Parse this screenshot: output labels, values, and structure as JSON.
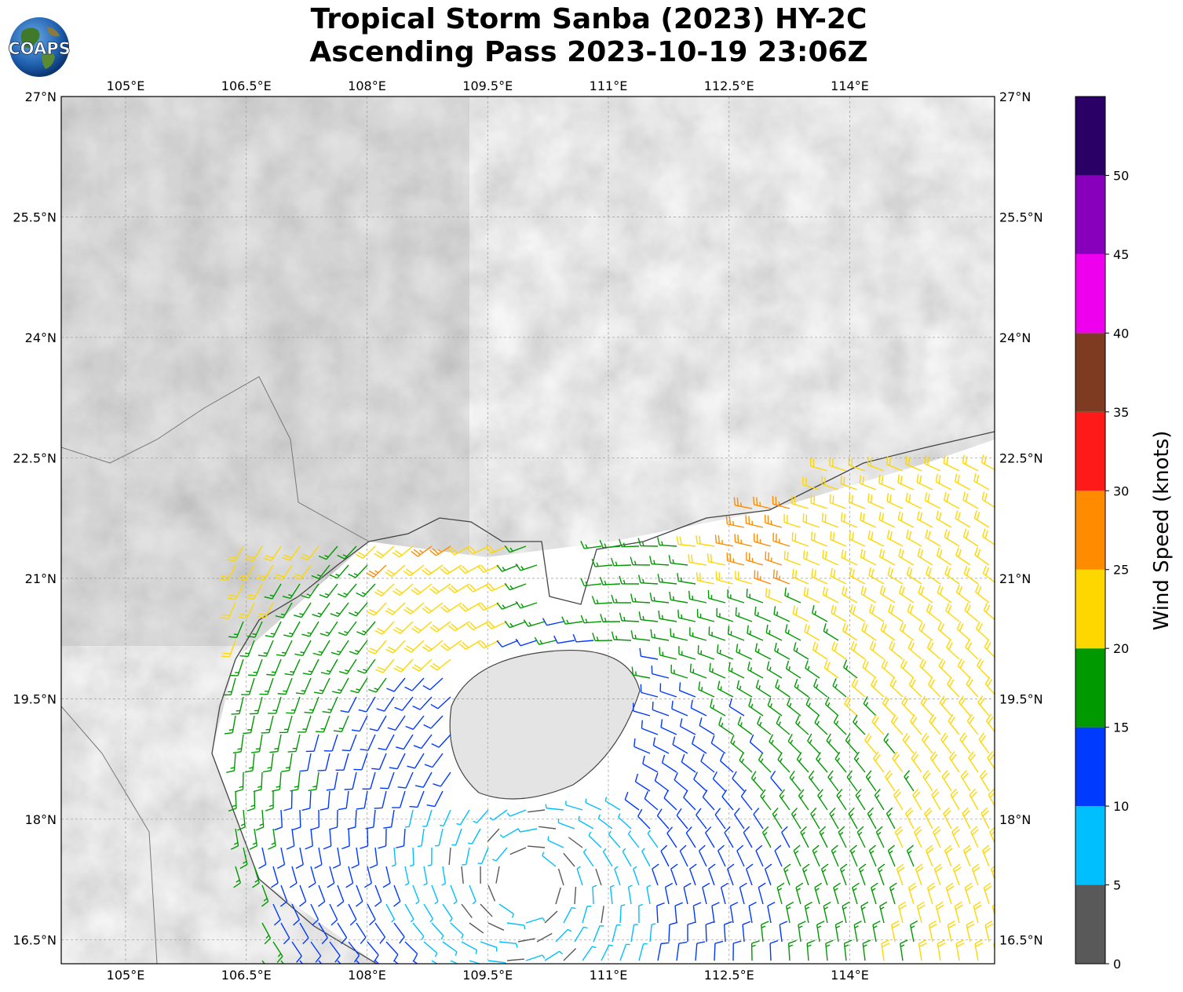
{
  "title": {
    "line1": "Tropical Storm Sanba (2023) HY-2C",
    "line2": "Ascending Pass 2023-10-19 23:06Z"
  },
  "logo": {
    "text": "COAPS",
    "icon": "globe-logo-icon"
  },
  "map": {
    "extent": {
      "lon_min": 104.2,
      "lon_max": 115.8,
      "lat_min": 16.2,
      "lat_max": 27.0
    },
    "lon_ticks": [
      "105°E",
      "106.5°E",
      "108°E",
      "109.5°E",
      "111°E",
      "112.5°E",
      "114°E"
    ],
    "lon_values": [
      105,
      106.5,
      108,
      109.5,
      111,
      112.5,
      114
    ],
    "lat_ticks": [
      "27°N",
      "25.5°N",
      "24°N",
      "22.5°N",
      "21°N",
      "19.5°N",
      "18°N",
      "16.5°N"
    ],
    "lat_values": [
      27,
      25.5,
      24,
      22.5,
      21,
      19.5,
      18,
      16.5
    ],
    "storm_center": {
      "lon": 110.0,
      "lat": 17.2
    },
    "background": "grayscale topography",
    "gridlines": true
  },
  "colorbar": {
    "label": "Wind Speed (knots)",
    "ticks": [
      "0",
      "5",
      "10",
      "15",
      "20",
      "25",
      "30",
      "35",
      "40",
      "45",
      "50"
    ],
    "bins": [
      {
        "min": 0,
        "max": 5,
        "color": "#595959"
      },
      {
        "min": 5,
        "max": 10,
        "color": "#00bfff"
      },
      {
        "min": 10,
        "max": 15,
        "color": "#0039ff"
      },
      {
        "min": 15,
        "max": 20,
        "color": "#009900"
      },
      {
        "min": 20,
        "max": 25,
        "color": "#ffd700"
      },
      {
        "min": 25,
        "max": 30,
        "color": "#ff8c00"
      },
      {
        "min": 30,
        "max": 35,
        "color": "#ff1a1a"
      },
      {
        "min": 35,
        "max": 40,
        "color": "#7f3a22"
      },
      {
        "min": 40,
        "max": 45,
        "color": "#ee00ee"
      },
      {
        "min": 45,
        "max": 50,
        "color": "#8800bb"
      },
      {
        "min": 50,
        "max": 55,
        "color": "#2b0066"
      }
    ]
  }
}
